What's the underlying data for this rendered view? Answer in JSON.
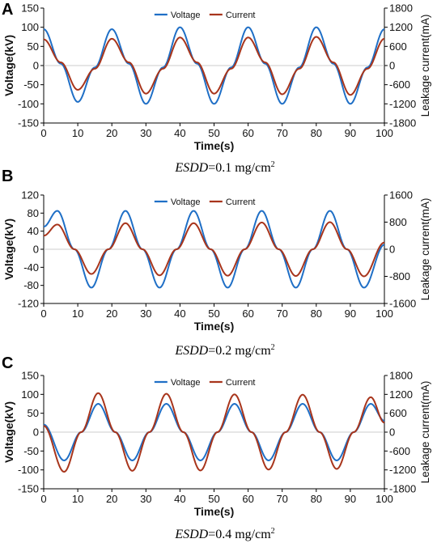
{
  "colors": {
    "voltage": "#1f6fc6",
    "current": "#a8351c",
    "axis": "#000000"
  },
  "chart_data": [
    {
      "type": "line",
      "panel_label": "A",
      "caption": {
        "italic": "ESDD",
        "rest": "=0.1 mg/cm",
        "sup": "2"
      },
      "xlabel": "Time(s)",
      "ylabel": "Voltage(kV)",
      "y2label": "Leakage current(mA)",
      "xlim": [
        0,
        100
      ],
      "ylim": [
        -150,
        150
      ],
      "y2lim": [
        -1800,
        1800
      ],
      "xticks": [
        "0",
        "10",
        "20",
        "30",
        "40",
        "50",
        "60",
        "70",
        "80",
        "90",
        "100"
      ],
      "yticks": [
        "-150",
        "-100",
        "-50",
        "0",
        "50",
        "100",
        "150"
      ],
      "y2ticks": [
        "-1800",
        "-1200",
        "-600",
        "0",
        "600",
        "1200",
        "1800"
      ],
      "legend": [
        "Voltage",
        "Current"
      ],
      "legend_position": "top-center",
      "series": [
        {
          "name": "Voltage",
          "axis": "left",
          "color": "voltage",
          "x": [
            0,
            5,
            10,
            15,
            20,
            25,
            30,
            35,
            40,
            45,
            50,
            55,
            60,
            65,
            70,
            75,
            80,
            85,
            90,
            95,
            100
          ],
          "y": [
            95,
            5,
            -95,
            -5,
            95,
            5,
            -100,
            -5,
            100,
            5,
            -100,
            -5,
            100,
            5,
            -100,
            -5,
            100,
            5,
            -100,
            -5,
            95
          ]
        },
        {
          "name": "Current",
          "axis": "right",
          "color": "current",
          "x": [
            0,
            5,
            10,
            15,
            20,
            25,
            30,
            35,
            40,
            45,
            50,
            55,
            60,
            65,
            70,
            75,
            80,
            85,
            90,
            95,
            100
          ],
          "y": [
            820,
            100,
            -760,
            -100,
            840,
            100,
            -880,
            -100,
            880,
            100,
            -880,
            -100,
            880,
            100,
            -900,
            -100,
            900,
            100,
            -920,
            -100,
            840
          ]
        }
      ]
    },
    {
      "type": "line",
      "panel_label": "B",
      "caption": {
        "italic": "ESDD",
        "rest": "=0.2 mg/cm",
        "sup": "2"
      },
      "xlabel": "Time(s)",
      "ylabel": "Voltage(kV)",
      "y2label": "Leakage current(mA)",
      "xlim": [
        0,
        100
      ],
      "ylim": [
        -120,
        120
      ],
      "y2lim": [
        -1600,
        1600
      ],
      "xticks": [
        "0",
        "10",
        "20",
        "30",
        "40",
        "50",
        "60",
        "70",
        "80",
        "90",
        "100"
      ],
      "yticks": [
        "-120",
        "-80",
        "-40",
        "0",
        "40",
        "80",
        "120"
      ],
      "y2ticks": [
        "-1600",
        "-800",
        "0",
        "800",
        "1600"
      ],
      "legend": [
        "Voltage",
        "Current"
      ],
      "legend_position": "top-center",
      "series": [
        {
          "name": "Voltage",
          "axis": "left",
          "color": "voltage",
          "x": [
            0,
            4,
            9,
            14,
            19,
            24,
            29,
            34,
            39,
            44,
            49,
            54,
            59,
            64,
            69,
            74,
            79,
            84,
            89,
            94,
            100
          ],
          "y": [
            50,
            85,
            0,
            -85,
            0,
            85,
            0,
            -85,
            0,
            85,
            0,
            -85,
            0,
            85,
            0,
            -85,
            0,
            85,
            0,
            -85,
            10
          ]
        },
        {
          "name": "Current",
          "axis": "right",
          "color": "current",
          "x": [
            0,
            4,
            9,
            14,
            19,
            24,
            29,
            34,
            39,
            44,
            49,
            54,
            59,
            64,
            69,
            74,
            79,
            84,
            89,
            94,
            100
          ],
          "y": [
            400,
            730,
            0,
            -730,
            0,
            770,
            0,
            -770,
            0,
            770,
            0,
            -780,
            0,
            790,
            0,
            -790,
            0,
            800,
            0,
            -800,
            200
          ]
        }
      ]
    },
    {
      "type": "line",
      "panel_label": "C",
      "caption": {
        "italic": "ESDD",
        "rest": "=0.4 mg/cm",
        "sup": "2"
      },
      "xlabel": "Time(s)",
      "ylabel": "Voltage(kV)",
      "y2label": "Leakage current(mA)",
      "xlim": [
        0,
        100
      ],
      "ylim": [
        -150,
        150
      ],
      "y2lim": [
        -1800,
        1800
      ],
      "xticks": [
        "0",
        "10",
        "20",
        "30",
        "40",
        "50",
        "60",
        "70",
        "80",
        "90",
        "100"
      ],
      "yticks": [
        "-150",
        "-100",
        "-50",
        "0",
        "50",
        "100",
        "150"
      ],
      "y2ticks": [
        "-1800",
        "-1200",
        "-600",
        "0",
        "600",
        "1200",
        "1800"
      ],
      "legend": [
        "Voltage",
        "Current"
      ],
      "legend_position": "top-center",
      "series": [
        {
          "name": "Voltage",
          "axis": "left",
          "color": "voltage",
          "x": [
            0,
            6,
            11,
            16,
            21,
            26,
            31,
            36,
            41,
            46,
            51,
            56,
            61,
            66,
            71,
            76,
            81,
            86,
            91,
            96,
            100
          ],
          "y": [
            20,
            -75,
            0,
            75,
            0,
            -75,
            0,
            75,
            0,
            -75,
            0,
            75,
            0,
            -75,
            0,
            75,
            0,
            -75,
            0,
            75,
            30
          ]
        },
        {
          "name": "Current",
          "axis": "right",
          "color": "current",
          "x": [
            0,
            6,
            11,
            16,
            21,
            26,
            31,
            36,
            41,
            46,
            51,
            56,
            61,
            66,
            71,
            76,
            81,
            86,
            91,
            96,
            100
          ],
          "y": [
            200,
            -1260,
            0,
            1240,
            0,
            -1230,
            0,
            1220,
            0,
            -1220,
            0,
            1200,
            0,
            -1190,
            0,
            1190,
            0,
            -1170,
            0,
            1110,
            300
          ]
        }
      ]
    }
  ]
}
